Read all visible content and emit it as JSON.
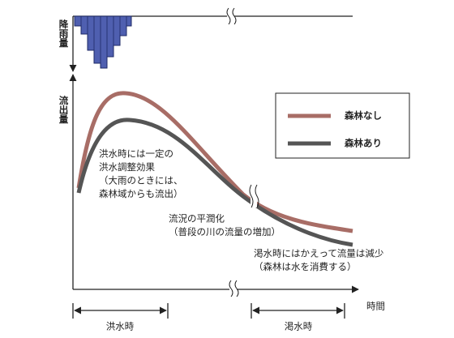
{
  "axes": {
    "rain": "降雨量",
    "runoff": "流出量",
    "time": "時間"
  },
  "legend": [
    {
      "label": "森林なし",
      "color": "#a86d66"
    },
    {
      "label": "森林あり",
      "color": "#555555"
    }
  ],
  "annotations": {
    "flood": [
      "洪水時には一定の",
      "洪水調整効果",
      "（大雨のときには、",
      "森林域からも流出）"
    ],
    "normal": [
      "流況の平潤化",
      "（普段の川の流量の増加）"
    ],
    "drought": [
      "渇水時にはかえって流量は減少",
      "（森林は水を消費する）"
    ]
  },
  "periods": [
    "洪水時",
    "渇水時"
  ]
}
